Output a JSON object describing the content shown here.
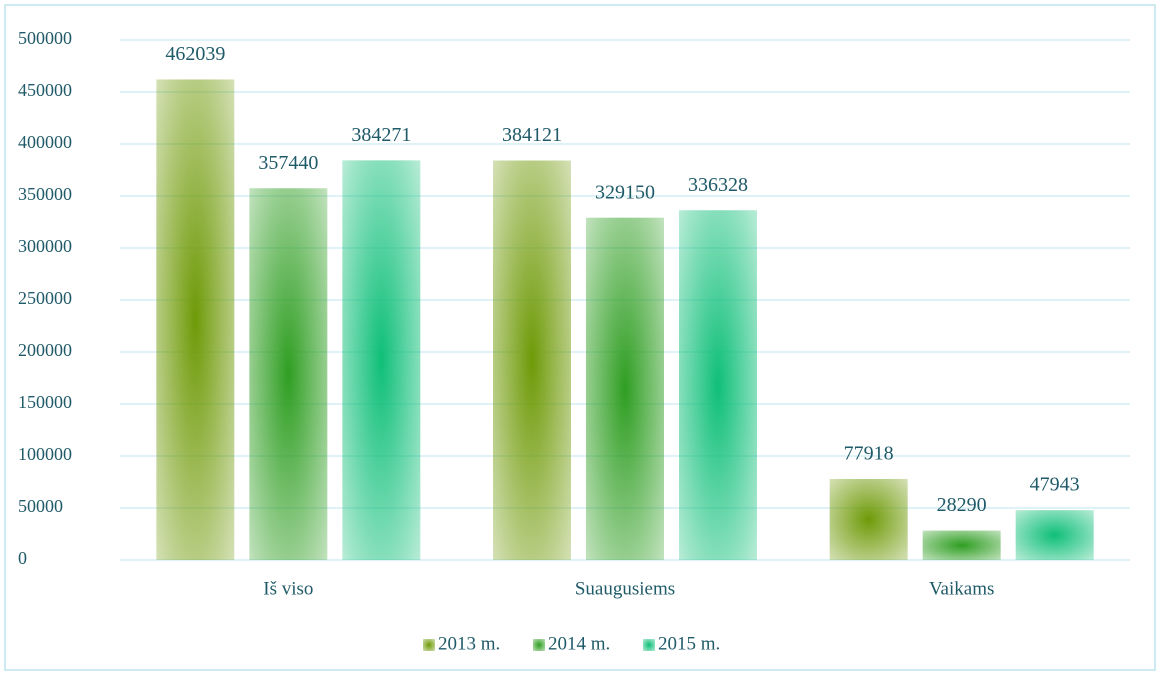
{
  "chart_data": {
    "type": "bar",
    "categories": [
      "Iš viso",
      "Suaugusiems",
      "Vaikams"
    ],
    "series": [
      {
        "name": "2013 m.",
        "color": "#6f9a08",
        "values": [
          462039,
          384121,
          77918
        ]
      },
      {
        "name": "2014 m.",
        "color": "#2f9e22",
        "values": [
          357440,
          329150,
          28290
        ]
      },
      {
        "name": "2015 m.",
        "color": "#0fbf78",
        "values": [
          384271,
          336328,
          47943
        ]
      }
    ],
    "ylim": [
      0,
      500000
    ],
    "yticks": [
      0,
      50000,
      100000,
      150000,
      200000,
      250000,
      300000,
      350000,
      400000,
      450000,
      500000
    ],
    "grid": true,
    "legend": "bottom"
  }
}
